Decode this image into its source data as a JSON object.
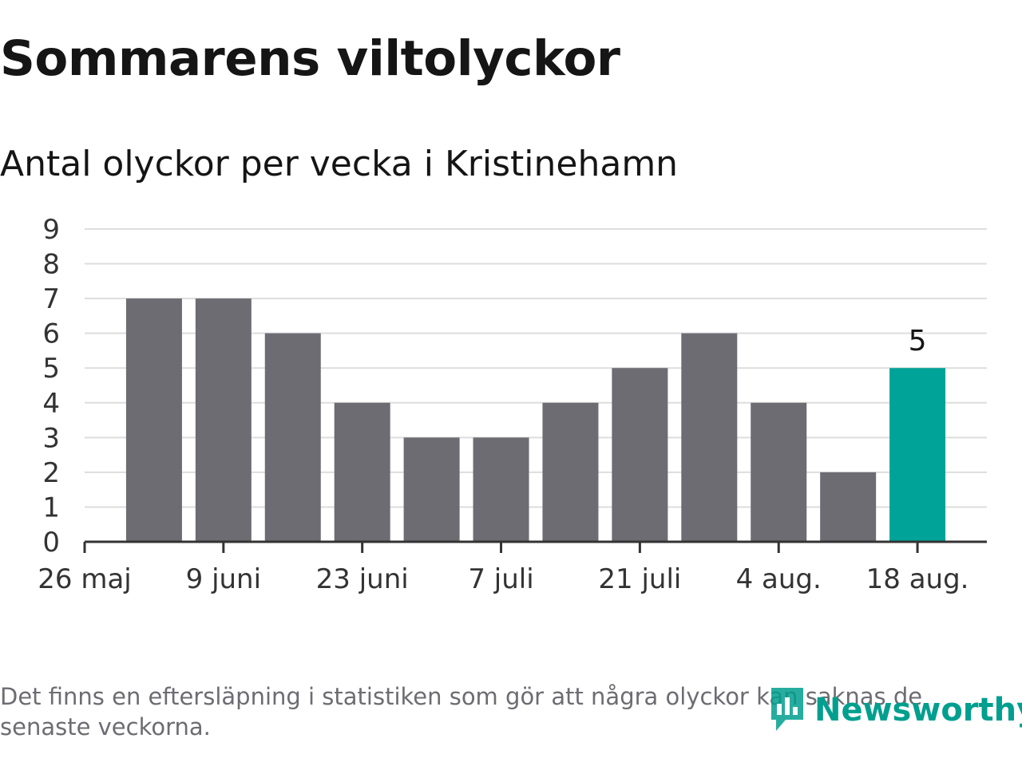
{
  "header": {
    "title": "Sommarens viltolyckor",
    "subtitle": "Antal olyckor per vecka i Kristinehamn"
  },
  "chart_data": {
    "type": "bar",
    "title": "Sommarens viltolyckor",
    "subtitle": "Antal olyckor per vecka i Kristinehamn",
    "x_tick_labels": [
      "26 maj",
      "9 juni",
      "23 juni",
      "7 juli",
      "21 juli",
      "4 aug.",
      "18 aug."
    ],
    "y_ticks": [
      0,
      1,
      2,
      3,
      4,
      5,
      6,
      7,
      8,
      9
    ],
    "ylim": [
      0,
      9
    ],
    "grid": true,
    "series": [
      {
        "values": [
          7,
          7,
          6,
          4,
          3,
          3,
          4,
          5,
          6,
          4,
          2,
          5
        ]
      }
    ],
    "highlight": {
      "index": 11,
      "label": "5"
    },
    "colors": {
      "bar": "#6d6c72",
      "highlight": "#00a398",
      "grid": "#dddddd",
      "axis": "#333333"
    }
  },
  "footnote": "Det finns en eftersläpning i statistiken som gör att några olyckor kan saknas de senaste veckorna.",
  "brand": {
    "name": "Newsworthy",
    "icon": "newsworthy-logo-icon",
    "color": "#009f8e"
  }
}
